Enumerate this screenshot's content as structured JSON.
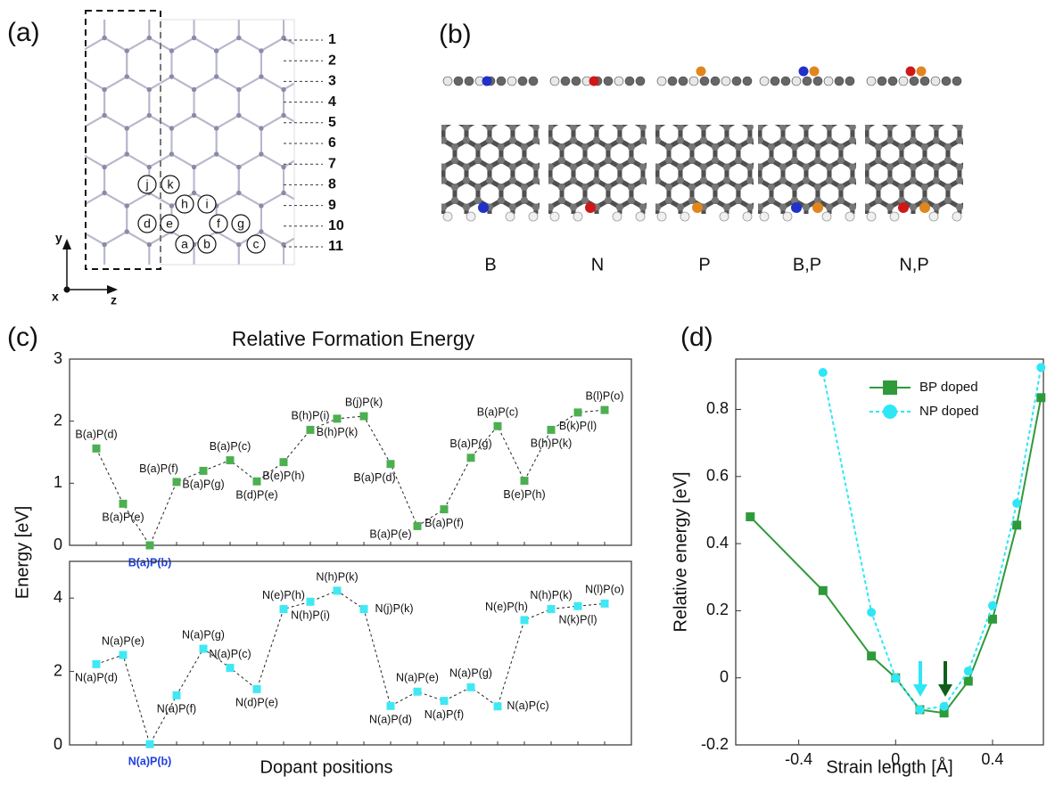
{
  "panel_a": {
    "label": "(a)",
    "rows": [
      "1",
      "2",
      "3",
      "4",
      "5",
      "6",
      "7",
      "8",
      "9",
      "10",
      "11"
    ],
    "sites": [
      "a",
      "b",
      "c",
      "d",
      "e",
      "f",
      "g",
      "h",
      "i",
      "j",
      "k"
    ],
    "axes": {
      "y": "y",
      "x": "x",
      "z": "z"
    }
  },
  "panel_b": {
    "label": "(b)",
    "dopants": [
      "B",
      "N",
      "P",
      "B,P",
      "N,P"
    ]
  },
  "panel_c": {
    "label": "(c)",
    "title": "Relative Formation Energy",
    "y_label": "Energy [eV]",
    "x_label": "Dopant positions"
  },
  "panel_d": {
    "label": "(d)"
  },
  "chart_data": [
    {
      "type": "line",
      "categories": [
        "B(a)P(d)",
        "B(a)P(e)",
        "B(a)P(b)",
        "B(a)P(f)",
        "B(a)P(g)",
        "B(a)P(c)",
        "B(d)P(e)",
        "B(e)P(h)",
        "B(h)P(i)",
        "B(h)P(k)",
        "B(j)P(k)",
        "B(a)P(d)",
        "B(a)P(e)",
        "B(a)P(f)",
        "B(a)P(g)",
        "B(a)P(c)",
        "B(e)P(h)",
        "B(h)P(k)",
        "B(k)P(l)",
        "B(l)P(o)"
      ],
      "values": [
        1.56,
        0.67,
        0.0,
        1.02,
        1.2,
        1.37,
        1.03,
        1.34,
        1.86,
        2.04,
        2.08,
        1.31,
        0.31,
        0.58,
        1.41,
        1.92,
        1.04,
        1.86,
        2.14,
        2.18
      ],
      "color": "#4caf50",
      "highlight_color": "#1f3fe0",
      "ylim": [
        0,
        3
      ],
      "yticks": [
        0,
        1,
        2,
        3
      ]
    },
    {
      "type": "line",
      "categories": [
        "N(a)P(d)",
        "N(a)P(e)",
        "N(a)P(b)",
        "N(a)P(f)",
        "N(a)P(g)",
        "N(a)P(c)",
        "N(d)P(e)",
        "N(e)P(h)",
        "N(h)P(i)",
        "N(h)P(k)",
        "N(j)P(k)",
        "N(a)P(d)",
        "N(a)P(e)",
        "N(a)P(f)",
        "N(a)P(g)",
        "N(a)P(c)",
        "N(e)P(h)",
        "N(h)P(k)",
        "N(k)P(l)",
        "N(l)P(o)"
      ],
      "values": [
        2.2,
        2.45,
        0.02,
        1.35,
        2.62,
        2.1,
        1.52,
        3.7,
        3.9,
        4.2,
        3.7,
        1.06,
        1.45,
        1.2,
        1.57,
        1.05,
        3.4,
        3.7,
        3.78,
        3.85
      ],
      "color": "#40e8f4",
      "highlight_color": "#1f3fe0",
      "ylim": [
        0,
        5
      ],
      "yticks": [
        0,
        2,
        4
      ]
    },
    {
      "type": "line",
      "x_label": "Strain length [Å]",
      "y_label": "Relative energy [eV]",
      "xlim": [
        -0.66,
        0.61
      ],
      "ylim": [
        -0.2,
        0.95
      ],
      "xticks": [
        -0.4,
        0,
        0.4
      ],
      "yticks": [
        -0.2,
        0,
        0.2,
        0.4,
        0.6,
        0.8
      ],
      "legend": "upper right",
      "series": [
        {
          "name": "BP doped",
          "color": "#2e9a3a",
          "marker": "square",
          "dashed": false,
          "x": [
            -0.6,
            -0.3,
            -0.1,
            0,
            0.1,
            0.2,
            0.3,
            0.4,
            0.5,
            0.6
          ],
          "values": [
            0.48,
            0.26,
            0.065,
            0,
            -0.095,
            -0.105,
            -0.01,
            0.175,
            0.455,
            0.835
          ]
        },
        {
          "name": "NP doped",
          "color": "#2ee6f6",
          "marker": "circle",
          "dashed": true,
          "x": [
            -0.3,
            -0.1,
            0,
            0.1,
            0.2,
            0.3,
            0.4,
            0.5,
            0.6
          ],
          "values": [
            0.91,
            0.195,
            0,
            -0.095,
            -0.085,
            0.02,
            0.215,
            0.52,
            0.925
          ]
        }
      ]
    }
  ]
}
